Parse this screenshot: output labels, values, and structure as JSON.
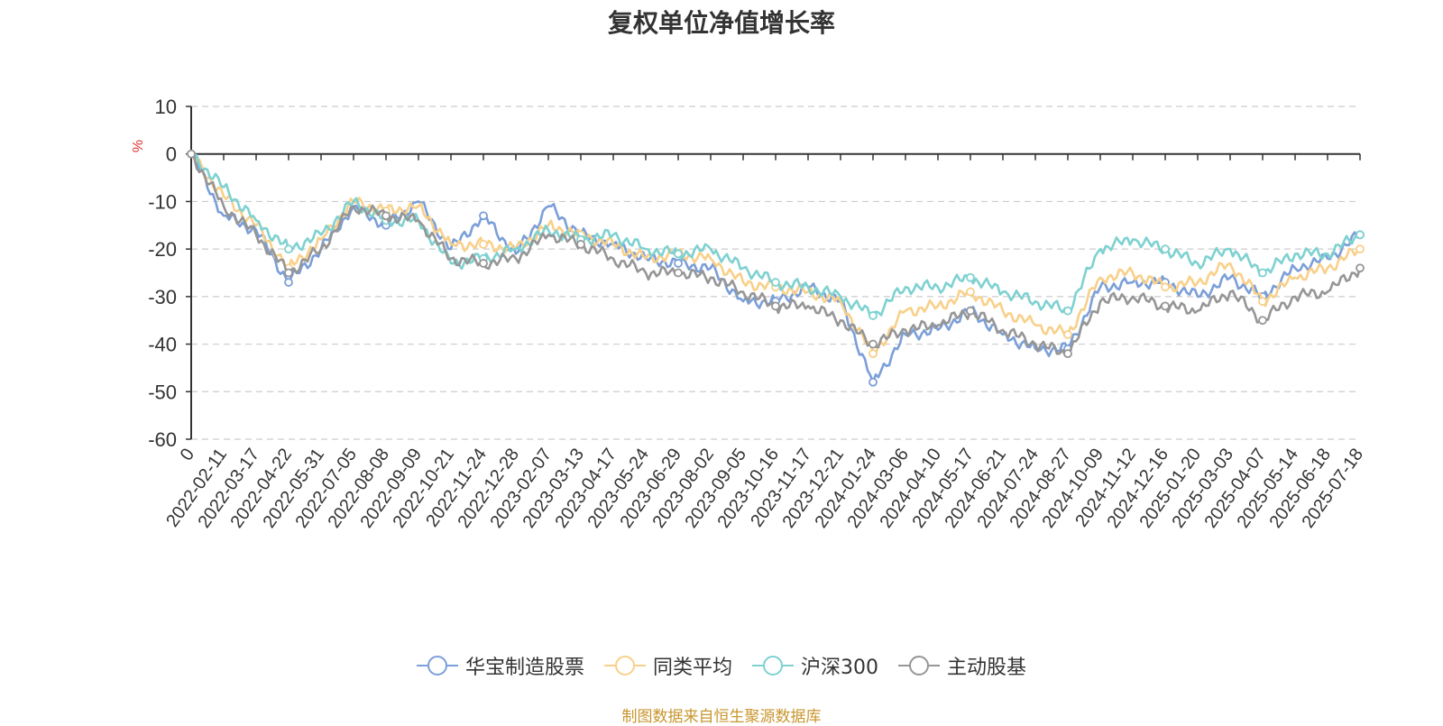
{
  "chart_data": {
    "type": "line",
    "title": "复权单位净值增长率",
    "ylabel": "%",
    "ylim": [
      -60,
      10
    ],
    "yticks": [
      10,
      0,
      -10,
      -20,
      -30,
      -40,
      -50,
      -60
    ],
    "grid": true,
    "legend_position": "bottom",
    "x": [
      "0",
      "2022-02-11",
      "2022-03-17",
      "2022-04-22",
      "2022-05-31",
      "2022-07-05",
      "2022-08-08",
      "2022-09-09",
      "2022-10-21",
      "2022-11-24",
      "2022-12-28",
      "2023-02-07",
      "2023-03-13",
      "2023-04-17",
      "2023-05-24",
      "2023-06-29",
      "2023-08-02",
      "2023-09-05",
      "2023-10-16",
      "2023-11-17",
      "2023-12-21",
      "2024-01-24",
      "2024-03-06",
      "2024-04-10",
      "2024-05-17",
      "2024-06-21",
      "2024-07-24",
      "2024-08-27",
      "2024-10-09",
      "2024-11-12",
      "2024-12-16",
      "2025-01-20",
      "2025-03-03",
      "2025-04-07",
      "2025-05-14",
      "2025-06-18",
      "2025-07-18"
    ],
    "series": [
      {
        "name": "华宝制造股票",
        "color": "#7b9fd8",
        "values": [
          0,
          -13,
          -16,
          -27,
          -20,
          -11,
          -15,
          -10,
          -20,
          -13,
          -21,
          -11,
          -17,
          -19,
          -22,
          -23,
          -24,
          -31,
          -31,
          -28,
          -31,
          -48,
          -38,
          -37,
          -33,
          -38,
          -41,
          -41,
          -28,
          -27,
          -27,
          -30,
          -26,
          -30,
          -24,
          -22,
          -17
        ]
      },
      {
        "name": "同类平均",
        "color": "#f8d08a",
        "values": [
          0,
          -9,
          -15,
          -24,
          -18,
          -10,
          -12,
          -11,
          -19,
          -19,
          -20,
          -15,
          -17,
          -19,
          -22,
          -21,
          -22,
          -27,
          -28,
          -29,
          -31,
          -42,
          -33,
          -32,
          -29,
          -33,
          -36,
          -38,
          -26,
          -25,
          -28,
          -27,
          -23,
          -31,
          -26,
          -24,
          -20
        ]
      },
      {
        "name": "沪深300",
        "color": "#7fd1d1",
        "values": [
          0,
          -7,
          -14,
          -20,
          -17,
          -10,
          -14,
          -14,
          -23,
          -22,
          -20,
          -16,
          -18,
          -17,
          -20,
          -21,
          -20,
          -24,
          -27,
          -28,
          -30,
          -34,
          -28,
          -28,
          -26,
          -29,
          -31,
          -33,
          -20,
          -18,
          -20,
          -23,
          -20,
          -25,
          -21,
          -21,
          -17
        ]
      },
      {
        "name": "主动股基",
        "color": "#969696",
        "values": [
          0,
          -11,
          -17,
          -25,
          -20,
          -11,
          -13,
          -14,
          -22,
          -23,
          -22,
          -17,
          -19,
          -22,
          -25,
          -25,
          -26,
          -29,
          -32,
          -32,
          -35,
          -40,
          -37,
          -36,
          -33,
          -37,
          -40,
          -42,
          -31,
          -30,
          -32,
          -33,
          -29,
          -35,
          -30,
          -29,
          -24
        ]
      }
    ],
    "source": "制图数据来自恒生聚源数据库"
  }
}
